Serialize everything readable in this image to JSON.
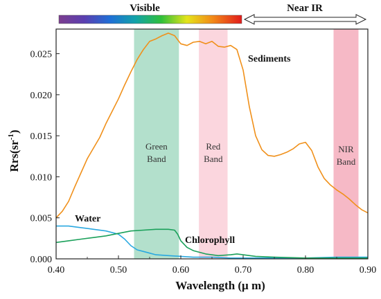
{
  "chart_data": {
    "type": "line",
    "xlabel": "Wavelength (μ m)",
    "ylabel": "Rrs(sr",
    "ylabel_sup": "-1",
    "ylabel_close": ")",
    "xlim": [
      0.4,
      0.9
    ],
    "ylim": [
      0.0,
      0.028
    ],
    "x_ticks": [
      0.4,
      0.5,
      0.6,
      0.7,
      0.8,
      0.9
    ],
    "x_tick_labels": [
      "0.40",
      "0.50",
      "0.60",
      "0.70",
      "0.80",
      "0.90"
    ],
    "y_ticks": [
      0.0,
      0.005,
      0.01,
      0.015,
      0.02,
      0.025
    ],
    "y_tick_labels": [
      "0.000",
      "0.005",
      "0.010",
      "0.015",
      "0.020",
      "0.025"
    ],
    "header": {
      "visible_label": "Visible",
      "visible_range": [
        0.4,
        0.69
      ],
      "near_ir_label": "Near IR",
      "near_ir_range": [
        0.69,
        0.9
      ]
    },
    "bands": [
      {
        "label_line1": "Green",
        "label_line2": "Band",
        "x0": 0.525,
        "x1": 0.597,
        "color": "#b3e0cc"
      },
      {
        "label_line1": "Red",
        "label_line2": "Band",
        "x0": 0.629,
        "x1": 0.675,
        "color": "#fbd6de"
      },
      {
        "label_line1": "NIR",
        "label_line2": "Band",
        "x0": 0.845,
        "x1": 0.885,
        "color": "#f6b9c6"
      }
    ],
    "series": [
      {
        "name": "Sediments",
        "color": "#f0901a",
        "x": [
          0.4,
          0.41,
          0.42,
          0.43,
          0.44,
          0.45,
          0.46,
          0.47,
          0.48,
          0.49,
          0.5,
          0.51,
          0.52,
          0.53,
          0.54,
          0.55,
          0.56,
          0.57,
          0.58,
          0.59,
          0.6,
          0.61,
          0.62,
          0.63,
          0.64,
          0.65,
          0.66,
          0.67,
          0.68,
          0.69,
          0.7,
          0.71,
          0.72,
          0.73,
          0.74,
          0.75,
          0.76,
          0.77,
          0.78,
          0.79,
          0.8,
          0.81,
          0.82,
          0.83,
          0.84,
          0.85,
          0.86,
          0.87,
          0.88,
          0.89,
          0.9
        ],
        "values": [
          0.005,
          0.0058,
          0.007,
          0.0088,
          0.0105,
          0.0122,
          0.0135,
          0.0148,
          0.0165,
          0.018,
          0.0195,
          0.0212,
          0.0228,
          0.0243,
          0.0255,
          0.0265,
          0.0268,
          0.0272,
          0.0275,
          0.0272,
          0.0262,
          0.026,
          0.0264,
          0.0265,
          0.0262,
          0.0265,
          0.0259,
          0.0258,
          0.026,
          0.0255,
          0.023,
          0.0185,
          0.015,
          0.0133,
          0.0126,
          0.0125,
          0.0127,
          0.013,
          0.0134,
          0.014,
          0.0142,
          0.0132,
          0.0112,
          0.0098,
          0.009,
          0.0084,
          0.0079,
          0.0073,
          0.0066,
          0.006,
          0.0056
        ]
      },
      {
        "name": "Water",
        "color": "#29a8e0",
        "x": [
          0.4,
          0.42,
          0.44,
          0.46,
          0.48,
          0.5,
          0.51,
          0.52,
          0.53,
          0.54,
          0.55,
          0.56,
          0.58,
          0.6,
          0.62,
          0.65,
          0.68,
          0.7,
          0.75,
          0.8,
          0.85,
          0.9
        ],
        "values": [
          0.004,
          0.004,
          0.0038,
          0.0036,
          0.0034,
          0.003,
          0.0024,
          0.0016,
          0.0011,
          0.0009,
          0.0007,
          0.0005,
          0.0004,
          0.0003,
          0.0002,
          0.0002,
          0.0001,
          0.0001,
          0.0001,
          0.0001,
          0.0002,
          0.0002
        ]
      },
      {
        "name": "Chlorophyll",
        "color": "#1aa05a",
        "x": [
          0.4,
          0.42,
          0.44,
          0.46,
          0.48,
          0.5,
          0.52,
          0.54,
          0.56,
          0.57,
          0.58,
          0.59,
          0.595,
          0.6,
          0.61,
          0.62,
          0.64,
          0.66,
          0.68,
          0.69,
          0.7,
          0.72,
          0.75,
          0.8,
          0.85,
          0.9
        ],
        "values": [
          0.002,
          0.0022,
          0.0024,
          0.0026,
          0.0028,
          0.0031,
          0.0034,
          0.0035,
          0.0036,
          0.0036,
          0.0036,
          0.0035,
          0.003,
          0.0022,
          0.0014,
          0.001,
          0.0006,
          0.0004,
          0.0005,
          0.0006,
          0.0005,
          0.0003,
          0.0002,
          0.0001,
          0.0001,
          0.0001
        ]
      }
    ]
  }
}
